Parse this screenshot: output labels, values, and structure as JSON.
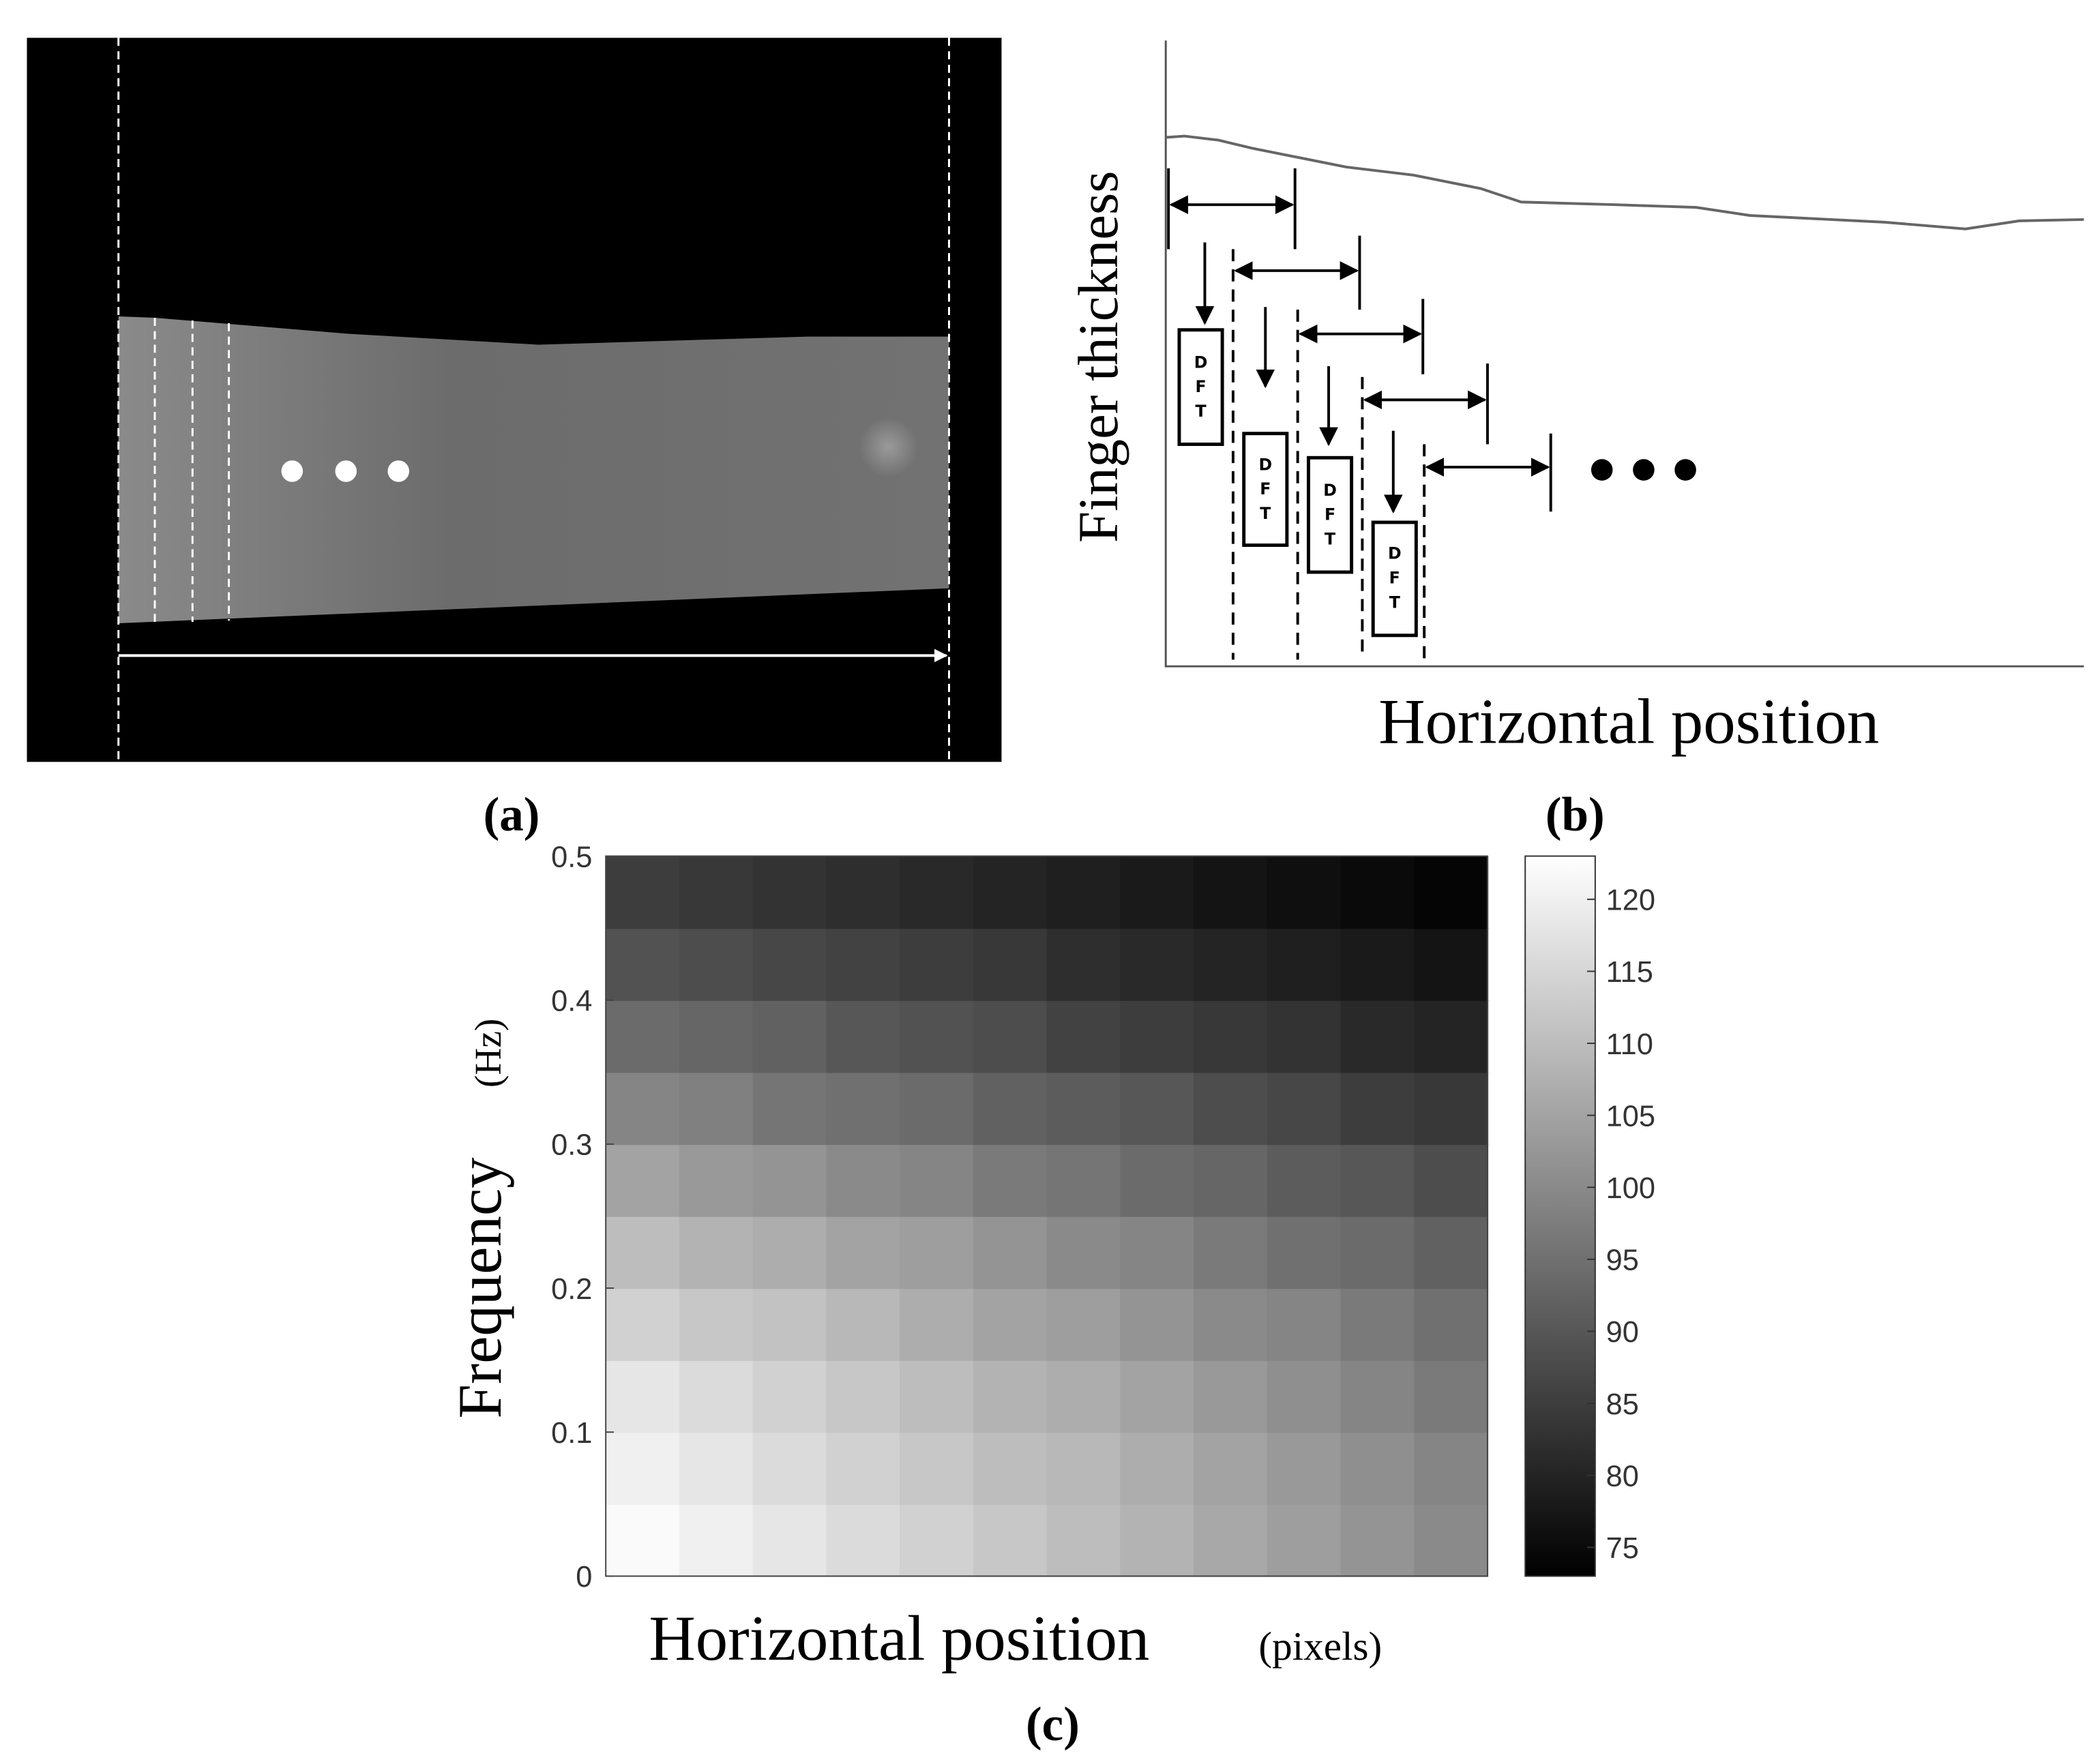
{
  "panel_a": {
    "label": "(a)"
  },
  "panel_b": {
    "label": "(b)",
    "ylabel": "Finger thickness",
    "xlabel": "Horizontal position",
    "boxes": [
      "DFT",
      "DFT",
      "DFT",
      "DFT"
    ]
  },
  "chart_data": {
    "type": "heatmap",
    "label": "(c)",
    "ylabel": "Frequency",
    "ylabel_unit": "(Hz)",
    "xlabel": "Horizontal position",
    "xlabel_unit": "(pixels)",
    "ylim": [
      0,
      0.5
    ],
    "yticks": [
      0,
      0.1,
      0.2,
      0.3,
      0.4,
      0.5
    ],
    "colormap": "gray",
    "clim": [
      73,
      123
    ],
    "cticks": [
      75,
      80,
      85,
      90,
      95,
      100,
      105,
      110,
      115,
      120
    ],
    "values": [
      [
        122,
        120,
        118,
        116,
        114,
        112,
        110,
        108,
        106,
        104,
        102,
        100
      ],
      [
        120,
        118,
        116,
        114,
        112,
        110,
        109,
        107,
        105,
        103,
        101,
        99
      ],
      [
        118,
        116,
        114,
        112,
        110,
        108,
        107,
        105,
        103,
        101,
        99,
        97
      ],
      [
        114,
        112,
        111,
        109,
        107,
        105,
        104,
        102,
        100,
        99,
        97,
        95
      ],
      [
        110,
        108,
        107,
        105,
        104,
        102,
        100,
        99,
        97,
        95,
        94,
        92
      ],
      [
        105,
        103,
        102,
        100,
        99,
        97,
        96,
        94,
        93,
        91,
        90,
        88
      ],
      [
        99,
        98,
        96,
        95,
        94,
        92,
        91,
        90,
        88,
        87,
        85,
        84
      ],
      [
        94,
        93,
        92,
        90,
        89,
        88,
        86,
        85,
        84,
        83,
        81,
        80
      ],
      [
        89,
        88,
        87,
        86,
        85,
        84,
        82,
        81,
        80,
        79,
        78,
        77
      ],
      [
        85,
        84,
        83,
        82,
        81,
        80,
        79,
        78,
        77,
        76,
        75,
        74
      ]
    ]
  }
}
